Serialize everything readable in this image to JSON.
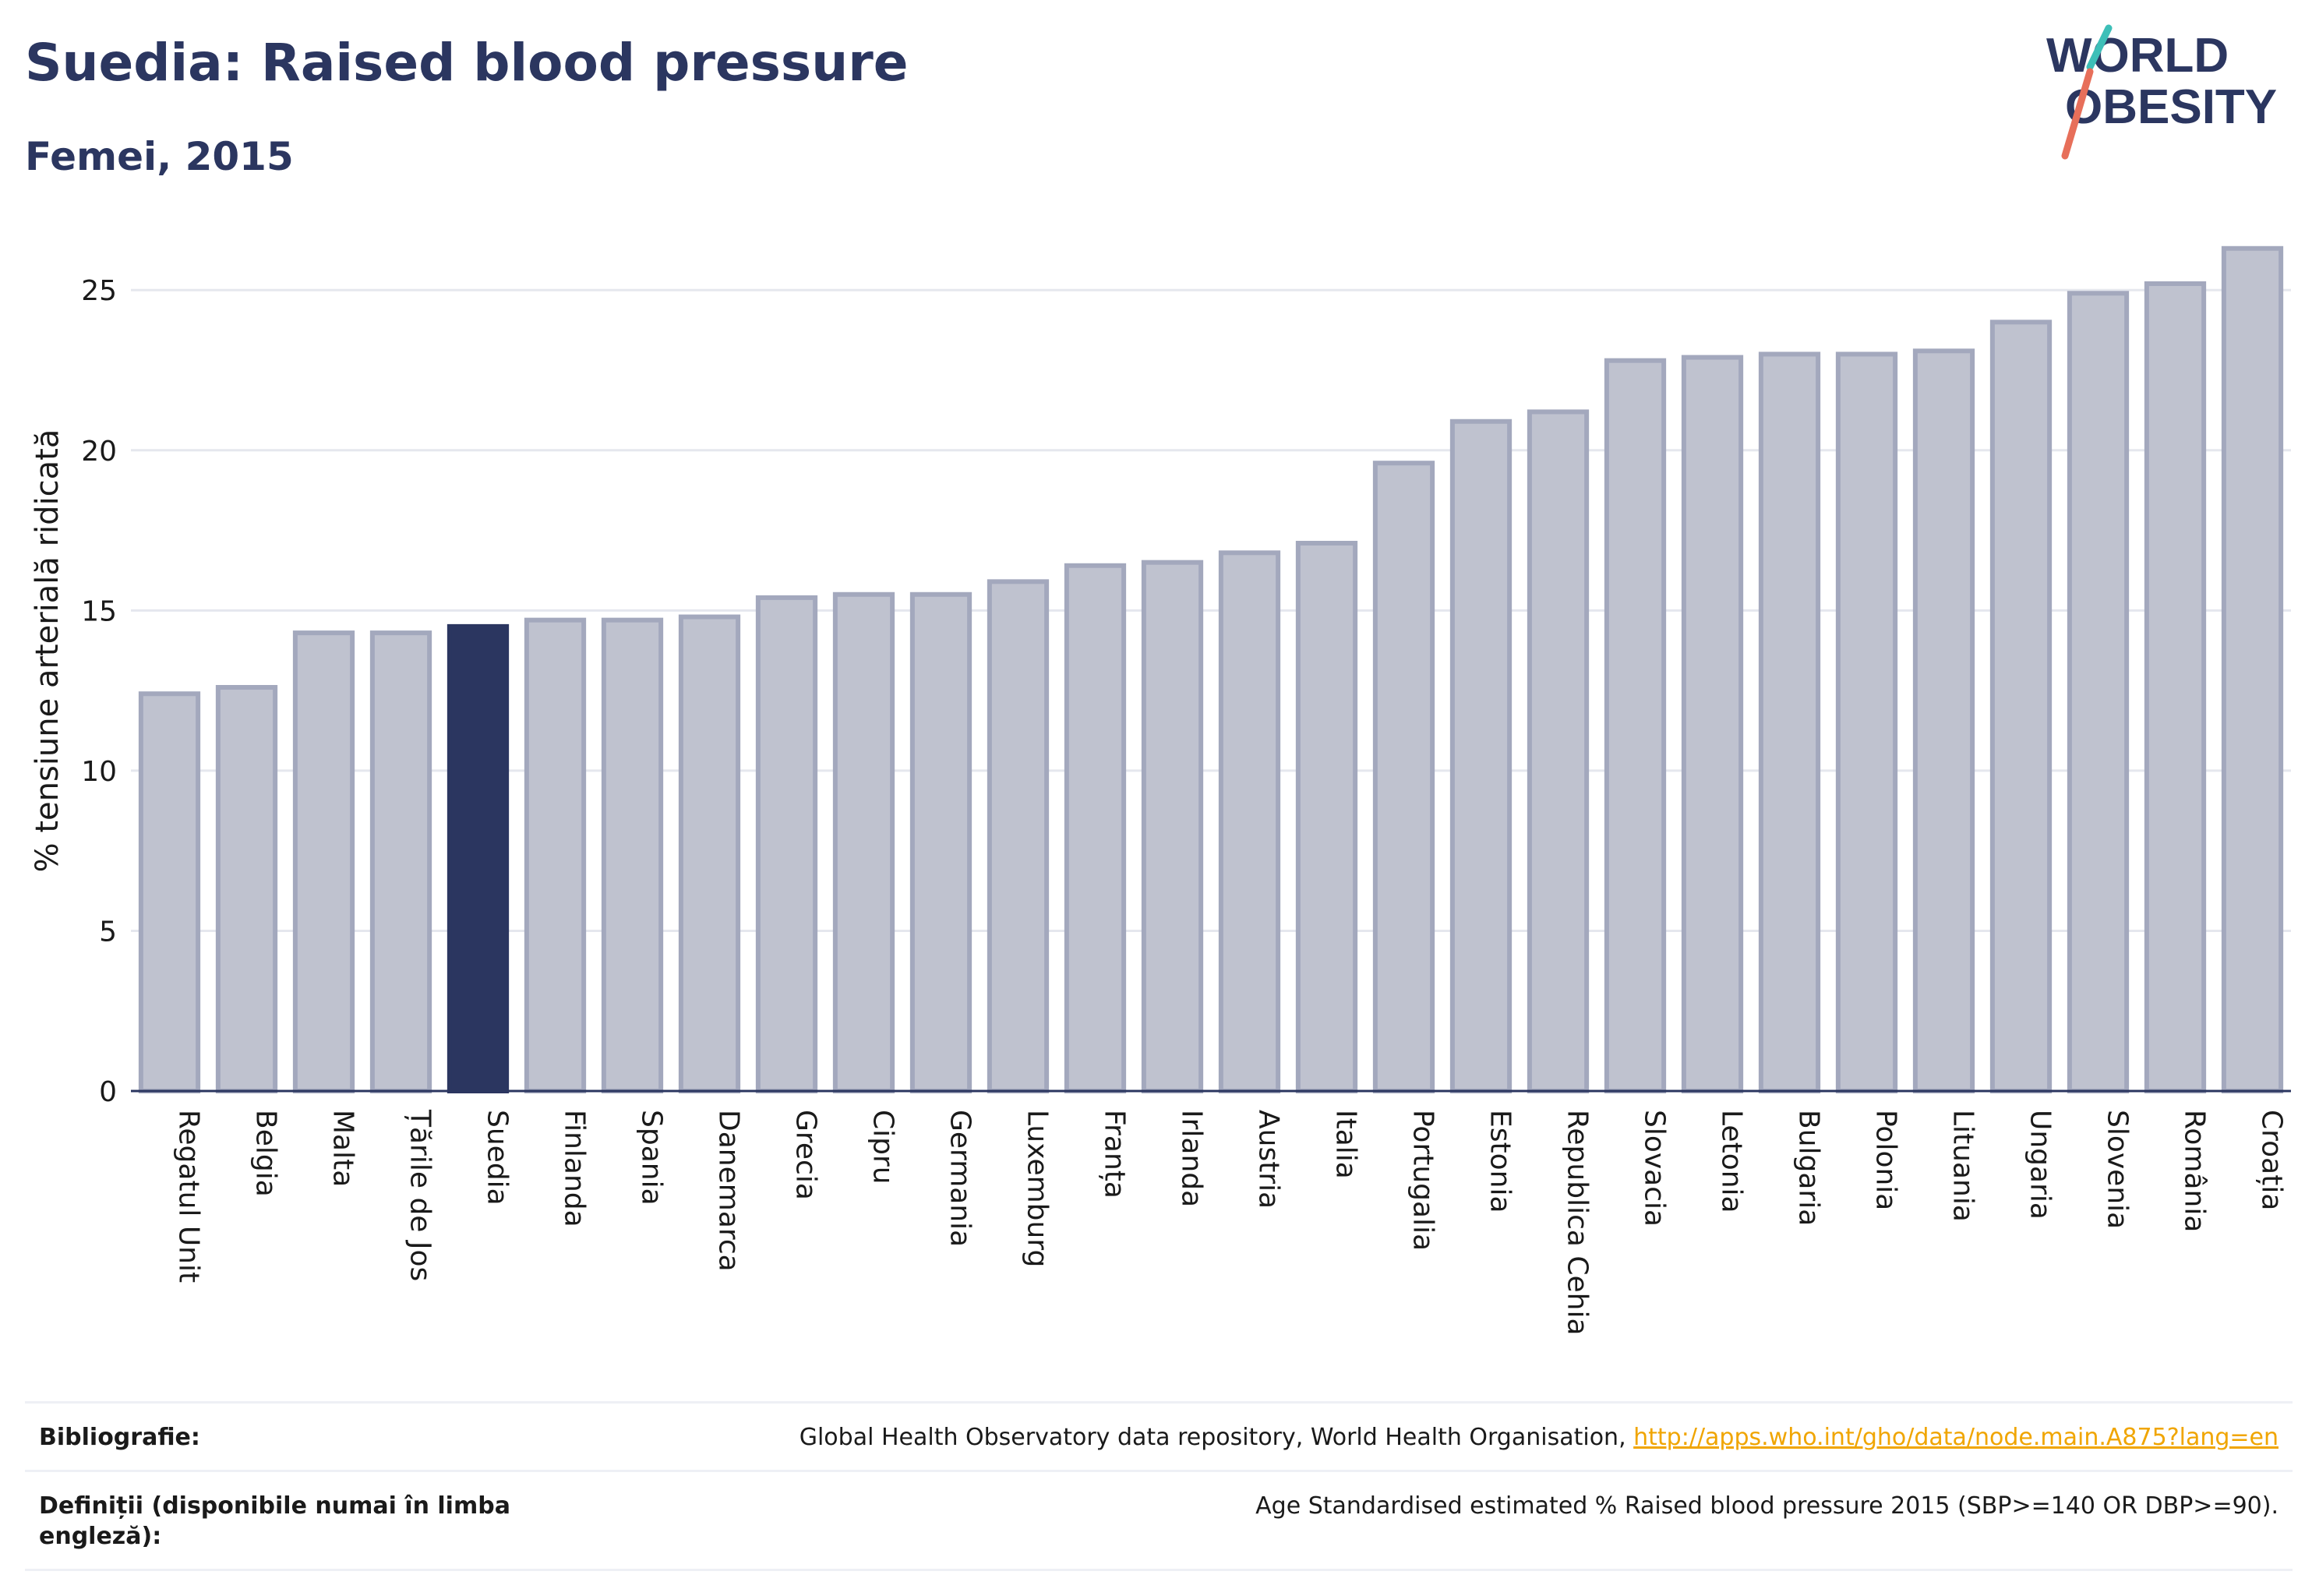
{
  "header": {
    "title": "Suedia: Raised blood pressure",
    "subtitle": "Femei, 2015"
  },
  "logo": {
    "line1": "WORLD",
    "line2": "OBESITY"
  },
  "colors": {
    "highlight": "#2b3660",
    "bar_fill": "#bfc2cf",
    "bar_stroke": "#a3a8bd",
    "grid": "#e5e7ee",
    "logo_slash_teal": "#3dbfb8",
    "logo_slash_red": "#e76f5a"
  },
  "chart_data": {
    "type": "bar",
    "title": "Suedia: Raised blood pressure",
    "subtitle": "Femei, 2015",
    "xlabel": "",
    "ylabel": "% tensiune arterială ridicată",
    "ylim": [
      0,
      27
    ],
    "yticks": [
      0,
      5,
      10,
      15,
      20,
      25
    ],
    "grid": true,
    "highlight": "Suedia",
    "categories": [
      "Regatul Unit",
      "Belgia",
      "Malta",
      "Țările de Jos",
      "Suedia",
      "Finlanda",
      "Spania",
      "Danemarca",
      "Grecia",
      "Cipru",
      "Germania",
      "Luxemburg",
      "Franța",
      "Irlanda",
      "Austria",
      "Italia",
      "Portugalia",
      "Estonia",
      "Republica Cehia",
      "Slovacia",
      "Letonia",
      "Bulgaria",
      "Polonia",
      "Lituania",
      "Ungaria",
      "Slovenia",
      "România",
      "Croația"
    ],
    "values": [
      12.4,
      12.6,
      14.3,
      14.3,
      14.5,
      14.7,
      14.7,
      14.8,
      15.4,
      15.5,
      15.5,
      15.9,
      16.4,
      16.5,
      16.8,
      17.1,
      19.6,
      20.9,
      21.2,
      22.8,
      22.9,
      23.0,
      23.0,
      23.1,
      24.0,
      24.9,
      25.2,
      26.3
    ]
  },
  "footer": {
    "bibliography_label": "Bibliografie:",
    "bibliography_text": "Global Health Observatory data repository, World Health Organisation, ",
    "bibliography_link": "http://apps.who.int/gho/data/node.main.A875?lang=en",
    "definitions_label": "Definiții (disponibile numai în limba engleză):",
    "definitions_text": "Age Standardised estimated % Raised blood pressure 2015 (SBP>=140 OR DBP>=90)."
  }
}
